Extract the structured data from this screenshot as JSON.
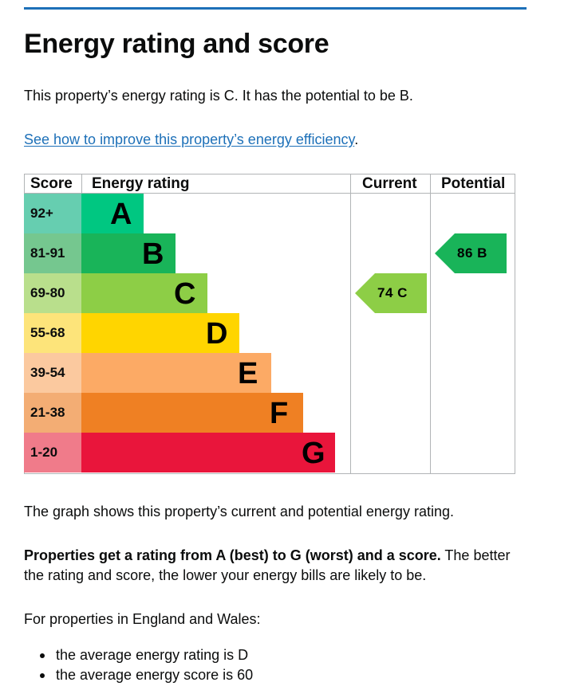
{
  "page": {
    "title": "Energy rating and score",
    "intro": "This property’s energy rating is C. It has the potential to be B.",
    "link_text": "See how to improve this property’s energy efficiency",
    "link_suffix": "."
  },
  "epc_table": {
    "headers": {
      "score": "Score",
      "energy_rating": "Energy rating",
      "current": "Current",
      "potential": "Potential"
    },
    "bands": [
      {
        "score": "92+",
        "letter": "A",
        "bar_color": "#00c781",
        "score_bg": "#66ceb0"
      },
      {
        "score": "81-91",
        "letter": "B",
        "bar_color": "#19b459",
        "score_bg": "#75c78f"
      },
      {
        "score": "69-80",
        "letter": "C",
        "bar_color": "#8dce46",
        "score_bg": "#b9df8c"
      },
      {
        "score": "55-68",
        "letter": "D",
        "bar_color": "#ffd500",
        "score_bg": "#fde47a"
      },
      {
        "score": "39-54",
        "letter": "E",
        "bar_color": "#fcaa65",
        "score_bg": "#fbc99f"
      },
      {
        "score": "21-38",
        "letter": "F",
        "bar_color": "#ef8023",
        "score_bg": "#f3ad74"
      },
      {
        "score": "1-20",
        "letter": "G",
        "bar_color": "#e9153b",
        "score_bg": "#f07b8a"
      }
    ],
    "current": {
      "label": "74  C",
      "band_letter": "C",
      "color": "#8dce46"
    },
    "potential": {
      "label": "86  B",
      "band_letter": "B",
      "color": "#19b459"
    }
  },
  "body": {
    "graph_note": "The graph shows this property’s current and potential energy rating.",
    "rating_bold": "Properties get a rating from A (best) to G (worst) and a score.",
    "rating_rest_1": " The better",
    "rating_rest_2": "the rating and score, the lower your energy bills are likely to be.",
    "region_intro": "For properties in England and Wales:",
    "bullets": [
      "the average energy rating is D",
      "the average energy score is 60"
    ]
  }
}
